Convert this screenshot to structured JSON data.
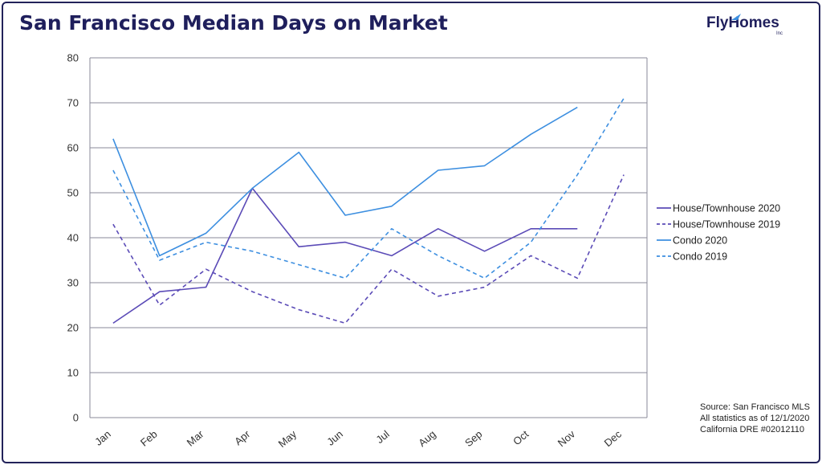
{
  "title": "San Francisco Median Days on Market",
  "logo": {
    "text": "FlyHomes",
    "sub": "Inc"
  },
  "source_lines": [
    "Source: San Francisco MLS",
    "All statistics as of 12/1/2020",
    "California DRE #02012110"
  ],
  "colors": {
    "house": "#5b4bb7",
    "condo": "#3d8fe0",
    "grid": "#8a8a98",
    "frame": "#22225a"
  },
  "chart_data": {
    "type": "line",
    "categories": [
      "Jan",
      "Feb",
      "Mar",
      "Apr",
      "May",
      "Jun",
      "Jul",
      "Aug",
      "Sep",
      "Oct",
      "Nov",
      "Dec"
    ],
    "ylim": [
      0,
      80
    ],
    "yticks": [
      0,
      10,
      20,
      30,
      40,
      50,
      60,
      70,
      80
    ],
    "grid": true,
    "legend_placement": "right",
    "series": [
      {
        "name": "House/Townhouse 2020",
        "color": "#5b4bb7",
        "dashed": false,
        "values": [
          21,
          28,
          29,
          51,
          38,
          39,
          36,
          42,
          37,
          42,
          42,
          null
        ]
      },
      {
        "name": "House/Townhouse 2019",
        "color": "#5b4bb7",
        "dashed": true,
        "values": [
          43,
          25,
          33,
          28,
          24,
          21,
          33,
          27,
          29,
          36,
          31,
          54
        ]
      },
      {
        "name": "Condo 2020",
        "color": "#3d8fe0",
        "dashed": false,
        "values": [
          62,
          36,
          41,
          51,
          59,
          45,
          47,
          55,
          56,
          63,
          69,
          null
        ]
      },
      {
        "name": "Condo 2019",
        "color": "#3d8fe0",
        "dashed": true,
        "values": [
          55,
          35,
          39,
          37,
          34,
          31,
          42,
          36,
          31,
          39,
          54,
          71
        ]
      }
    ]
  }
}
